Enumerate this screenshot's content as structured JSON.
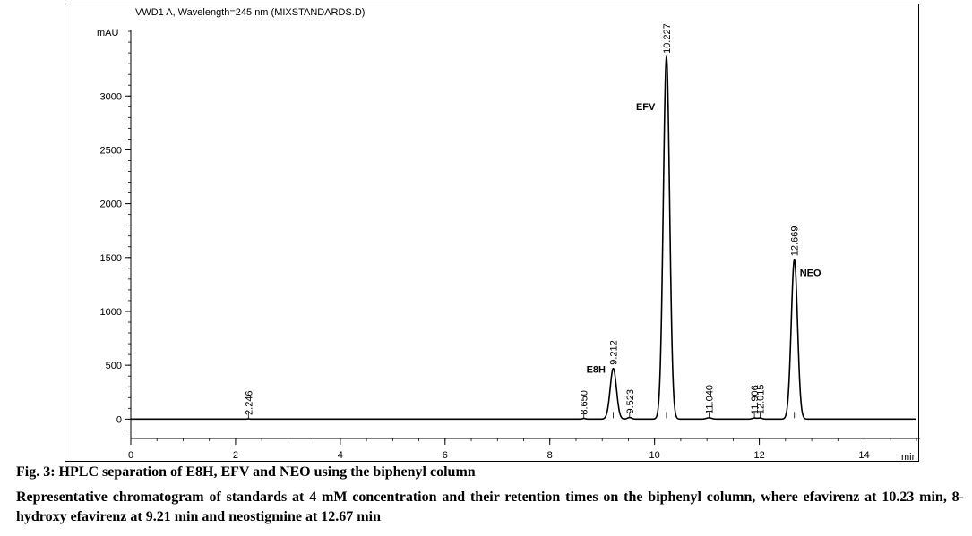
{
  "chart_data": {
    "type": "line",
    "title": "VWD1 A, Wavelength=245 nm (MIXSTANDARDS.D)",
    "ylabel": "mAU",
    "xlabel": "min",
    "xlim": [
      0,
      15
    ],
    "ylim": [
      -180,
      3700
    ],
    "x_ticks": [
      0,
      2,
      4,
      6,
      8,
      10,
      12,
      14
    ],
    "x_tick_labels": [
      "0",
      "2",
      "4",
      "6",
      "8",
      "10",
      "12",
      "14"
    ],
    "y_ticks": [
      0,
      500,
      1000,
      1500,
      2000,
      2500,
      3000
    ],
    "y_tick_labels": [
      "0",
      "500",
      "1000",
      "1500",
      "2000",
      "2500",
      "3000"
    ],
    "baseline": 0,
    "peaks": [
      {
        "rt": 2.246,
        "label": "2.246",
        "height": 3,
        "width": 0.02
      },
      {
        "rt": 8.65,
        "label": "8.650",
        "height": 6,
        "width": 0.03
      },
      {
        "rt": 9.212,
        "label": "9.212",
        "height": 470,
        "width": 0.06,
        "name": "E8H"
      },
      {
        "rt": 9.523,
        "label": "9.523",
        "height": 15,
        "width": 0.04
      },
      {
        "rt": 10.227,
        "label": "10.227",
        "height": 3360,
        "width": 0.06,
        "name": "EFV"
      },
      {
        "rt": 11.04,
        "label": "11.040",
        "height": 12,
        "width": 0.05
      },
      {
        "rt": 11.906,
        "label": "11.906",
        "height": 10,
        "width": 0.04
      },
      {
        "rt": 12.015,
        "label": "12.015",
        "height": 10,
        "width": 0.04
      },
      {
        "rt": 12.669,
        "label": "12.669",
        "height": 1480,
        "width": 0.06,
        "name": "NEO"
      }
    ],
    "grid": false,
    "line_color": "#000000"
  },
  "figure": {
    "title": "Fig. 3: HPLC separation of E8H, EFV and NEO using the biphenyl column",
    "description": "Representative chromatogram of standards at 4 mM concentration and their retention times on the biphenyl column, where efavirenz at 10.23 min, 8-hydroxy efavirenz at 9.21 min and neostigmine at 12.67 min"
  }
}
